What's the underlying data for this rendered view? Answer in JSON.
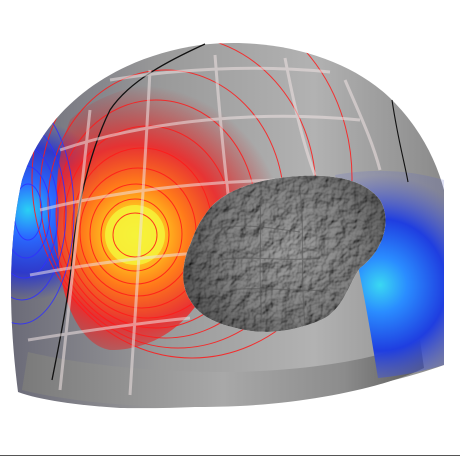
{
  "scene": {
    "subject": "3d-head-model-with-brain-and-scalp-potential-map",
    "colors": {
      "background": "#ffffff",
      "shell_gray": "#8f8f8f",
      "brain_gray": "#7a7a7a",
      "hot_center": "#f2ef3a",
      "hot_mid": "#ff7a1a",
      "hot_outer": "#e0222a",
      "cold_center": "#2ad4f0",
      "cold_mid": "#2a5cff",
      "cold_outer": "#1a2ad0",
      "grid_line": "#e8dcdc",
      "contour_red": "#ff1a1a",
      "contour_blue": "#2a2aff",
      "zero_line": "#111111",
      "bottom_rule": "#555555"
    }
  }
}
